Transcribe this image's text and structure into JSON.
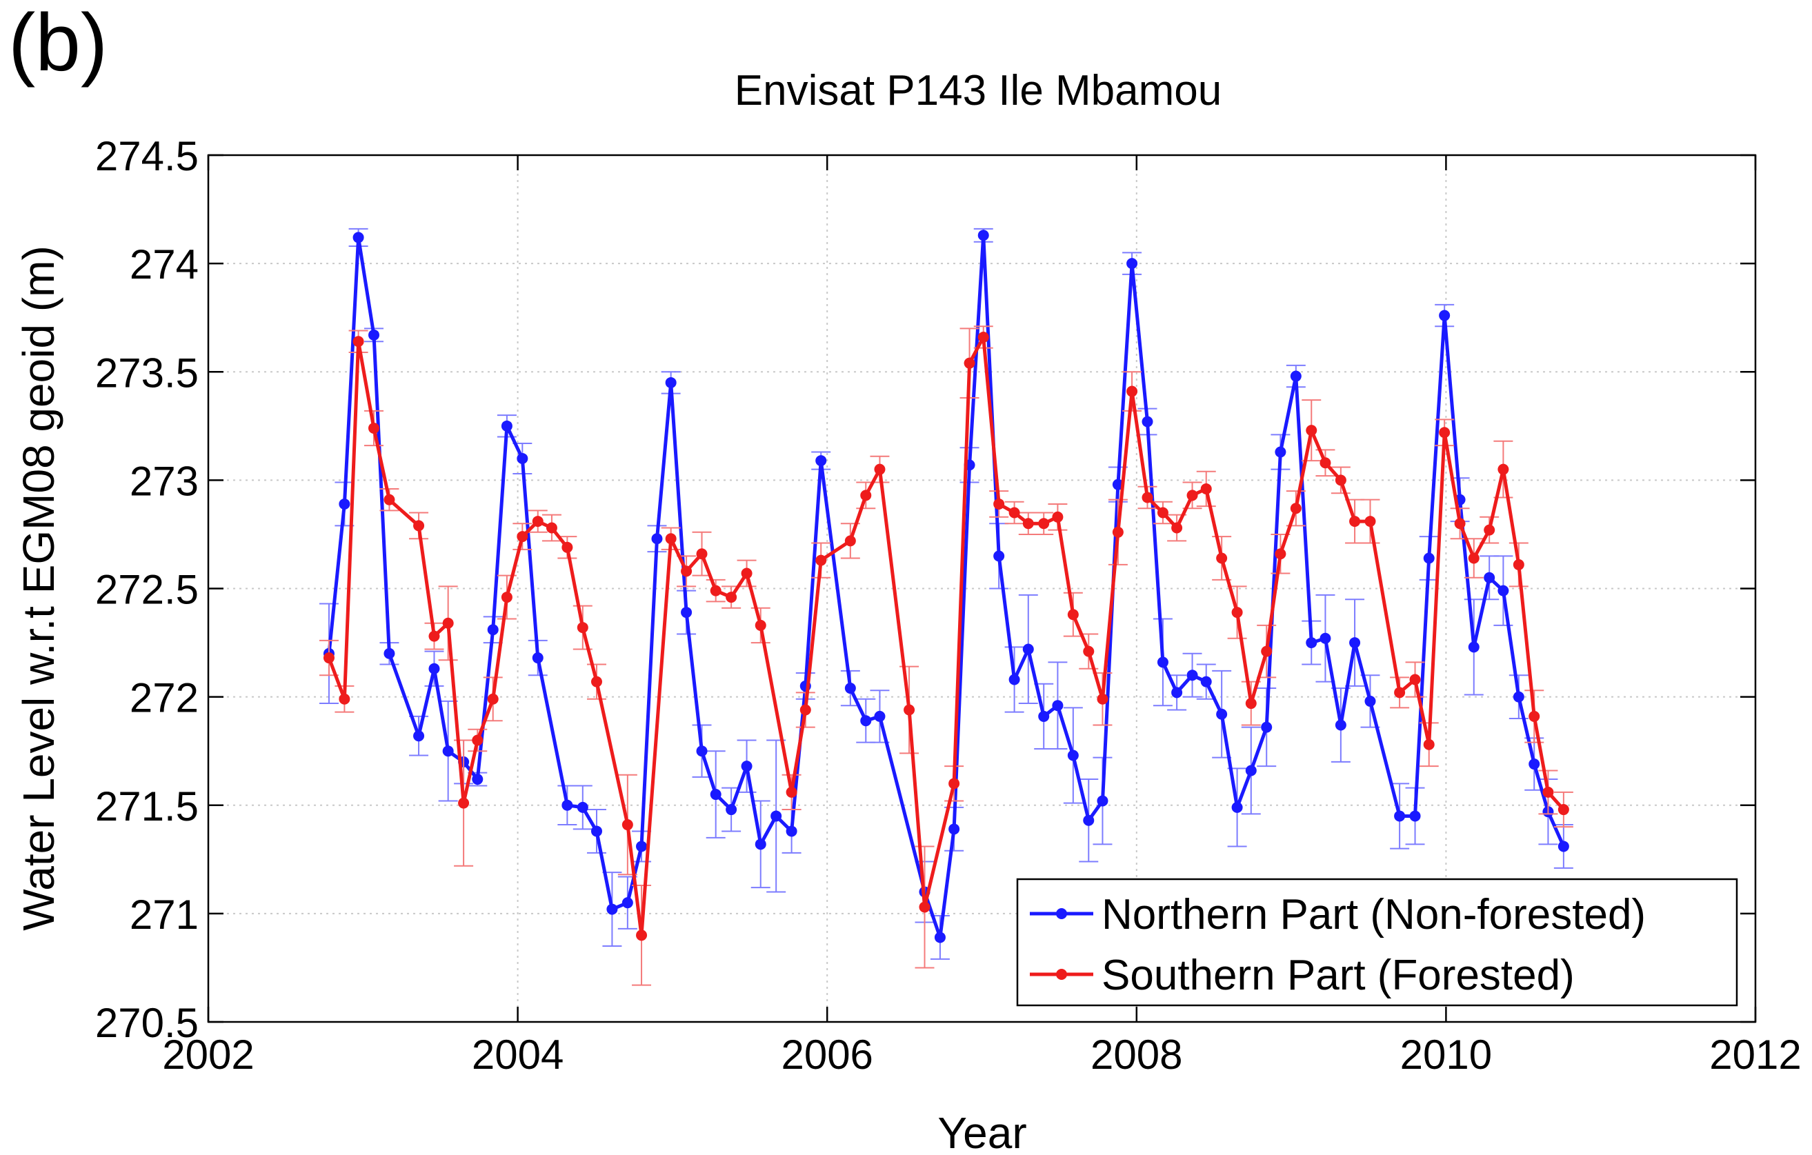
{
  "panel_label": "(b)",
  "chart_data": {
    "type": "line",
    "title": "Envisat P143 Ile Mbamou",
    "xlabel": "Year",
    "ylabel": "Water Level w.r.t EGM08 geoid (m)",
    "xlim": [
      2002,
      2012
    ],
    "ylim": [
      270.5,
      274.5
    ],
    "x_ticks": [
      2002,
      2004,
      2006,
      2008,
      2010,
      2012
    ],
    "x_tick_labels": [
      "2002",
      "2004",
      "2006",
      "2008",
      "2010",
      "2012"
    ],
    "y_ticks": [
      270.5,
      271,
      271.5,
      272,
      272.5,
      273,
      273.5,
      274,
      274.5
    ],
    "y_tick_labels": [
      "270.5",
      "271",
      "271.5",
      "272",
      "272.5",
      "273",
      "273.5",
      "274",
      "274.5"
    ],
    "grid": true,
    "legend_position": "bottom-right",
    "series": [
      {
        "name": "Northern Part (Non-forested)",
        "color": "#1a1aff",
        "x": [
          2002.78,
          2002.88,
          2002.97,
          2003.07,
          2003.17,
          2003.36,
          2003.46,
          2003.55,
          2003.65,
          2003.74,
          2003.84,
          2003.93,
          2004.03,
          2004.13,
          2004.32,
          2004.42,
          2004.51,
          2004.61,
          2004.71,
          2004.8,
          2004.9,
          2004.99,
          2005.09,
          2005.19,
          2005.28,
          2005.38,
          2005.48,
          2005.57,
          2005.67,
          2005.77,
          2005.86,
          2005.96,
          2006.15,
          2006.25,
          2006.34,
          2006.63,
          2006.73,
          2006.82,
          2006.92,
          2007.01,
          2007.11,
          2007.21,
          2007.3,
          2007.4,
          2007.49,
          2007.59,
          2007.69,
          2007.78,
          2007.88,
          2007.97,
          2008.07,
          2008.17,
          2008.26,
          2008.36,
          2008.45,
          2008.55,
          2008.65,
          2008.74,
          2008.84,
          2008.93,
          2009.03,
          2009.13,
          2009.22,
          2009.32,
          2009.41,
          2009.51,
          2009.7,
          2009.8,
          2009.89,
          2009.99,
          2010.09,
          2010.18,
          2010.28,
          2010.37,
          2010.47,
          2010.57,
          2010.66,
          2010.76
        ],
        "y": [
          272.2,
          272.89,
          274.12,
          273.67,
          272.2,
          271.82,
          272.13,
          271.75,
          271.7,
          271.62,
          272.31,
          273.25,
          273.1,
          272.18,
          271.5,
          271.49,
          271.38,
          271.02,
          271.05,
          271.31,
          272.73,
          273.45,
          272.39,
          271.75,
          271.55,
          271.48,
          271.68,
          271.32,
          271.45,
          271.38,
          272.05,
          273.09,
          272.04,
          271.89,
          271.91,
          271.1,
          270.89,
          271.39,
          273.07,
          274.13,
          272.65,
          272.08,
          272.22,
          271.91,
          271.96,
          271.73,
          271.43,
          271.52,
          272.98,
          274.0,
          273.27,
          272.16,
          272.02,
          272.1,
          272.07,
          271.92,
          271.49,
          271.66,
          271.86,
          273.13,
          273.48,
          272.25,
          272.27,
          271.87,
          272.25,
          271.98,
          271.45,
          271.45,
          272.64,
          273.76,
          272.91,
          272.23,
          272.55,
          272.49,
          272.0,
          271.69,
          271.47,
          271.31
        ],
        "errors": [
          0.23,
          0.1,
          0.04,
          0.03,
          0.05,
          0.09,
          0.08,
          0.23,
          0.1,
          0.03,
          0.06,
          0.05,
          0.07,
          0.08,
          0.09,
          0.1,
          0.1,
          0.17,
          0.12,
          0.07,
          0.06,
          0.05,
          0.1,
          0.12,
          0.2,
          0.1,
          0.12,
          0.2,
          0.35,
          0.1,
          0.06,
          0.04,
          0.08,
          0.1,
          0.12,
          0.14,
          0.1,
          0.1,
          0.08,
          0.03,
          0.15,
          0.15,
          0.25,
          0.15,
          0.2,
          0.22,
          0.19,
          0.2,
          0.08,
          0.05,
          0.06,
          0.2,
          0.08,
          0.1,
          0.08,
          0.2,
          0.18,
          0.2,
          0.18,
          0.08,
          0.05,
          0.1,
          0.2,
          0.17,
          0.2,
          0.12,
          0.15,
          0.13,
          0.1,
          0.05,
          0.1,
          0.22,
          0.1,
          0.16,
          0.1,
          0.12,
          0.15,
          0.1
        ]
      },
      {
        "name": "Southern Part (Forested)",
        "color": "#ee1c1c",
        "x": [
          2002.78,
          2002.88,
          2002.97,
          2003.07,
          2003.17,
          2003.36,
          2003.46,
          2003.55,
          2003.65,
          2003.74,
          2003.84,
          2003.93,
          2004.03,
          2004.13,
          2004.22,
          2004.32,
          2004.42,
          2004.51,
          2004.71,
          2004.8,
          2004.99,
          2005.09,
          2005.19,
          2005.28,
          2005.38,
          2005.48,
          2005.57,
          2005.77,
          2005.86,
          2005.96,
          2006.15,
          2006.25,
          2006.34,
          2006.53,
          2006.63,
          2006.82,
          2006.92,
          2007.01,
          2007.11,
          2007.21,
          2007.3,
          2007.4,
          2007.49,
          2007.59,
          2007.69,
          2007.78,
          2007.88,
          2007.97,
          2008.07,
          2008.17,
          2008.26,
          2008.36,
          2008.45,
          2008.55,
          2008.65,
          2008.74,
          2008.84,
          2008.93,
          2009.03,
          2009.13,
          2009.22,
          2009.32,
          2009.41,
          2009.51,
          2009.7,
          2009.8,
          2009.89,
          2009.99,
          2010.09,
          2010.18,
          2010.28,
          2010.37,
          2010.47,
          2010.57,
          2010.66,
          2010.76
        ],
        "y": [
          272.18,
          271.99,
          273.64,
          273.24,
          272.91,
          272.79,
          272.28,
          272.34,
          271.51,
          271.8,
          271.99,
          272.46,
          272.74,
          272.81,
          272.78,
          272.69,
          272.32,
          272.07,
          271.41,
          270.9,
          272.73,
          272.58,
          272.66,
          272.49,
          272.46,
          272.57,
          272.33,
          271.56,
          271.94,
          272.63,
          272.72,
          272.93,
          273.05,
          271.94,
          271.03,
          271.6,
          273.54,
          273.66,
          272.89,
          272.85,
          272.8,
          272.8,
          272.83,
          272.38,
          272.21,
          271.99,
          272.76,
          273.41,
          272.92,
          272.85,
          272.78,
          272.93,
          272.96,
          272.64,
          272.39,
          271.97,
          272.21,
          272.66,
          272.87,
          273.23,
          273.08,
          273.0,
          272.81,
          272.81,
          272.02,
          272.08,
          271.78,
          273.22,
          272.8,
          272.64,
          272.77,
          273.05,
          272.61,
          271.91,
          271.56,
          271.48
        ],
        "errors": [
          0.08,
          0.06,
          0.05,
          0.08,
          0.05,
          0.06,
          0.06,
          0.17,
          0.29,
          0.05,
          0.1,
          0.1,
          0.06,
          0.05,
          0.06,
          0.05,
          0.1,
          0.08,
          0.23,
          0.23,
          0.05,
          0.07,
          0.1,
          0.05,
          0.05,
          0.06,
          0.08,
          0.08,
          0.08,
          0.08,
          0.08,
          0.06,
          0.06,
          0.2,
          0.28,
          0.08,
          0.16,
          0.05,
          0.06,
          0.05,
          0.05,
          0.05,
          0.06,
          0.1,
          0.08,
          0.12,
          0.15,
          0.09,
          0.05,
          0.05,
          0.06,
          0.06,
          0.08,
          0.1,
          0.12,
          0.1,
          0.12,
          0.09,
          0.08,
          0.14,
          0.06,
          0.06,
          0.1,
          0.1,
          0.07,
          0.08,
          0.1,
          0.06,
          0.07,
          0.09,
          0.06,
          0.13,
          0.1,
          0.12,
          0.1,
          0.08
        ]
      }
    ]
  }
}
